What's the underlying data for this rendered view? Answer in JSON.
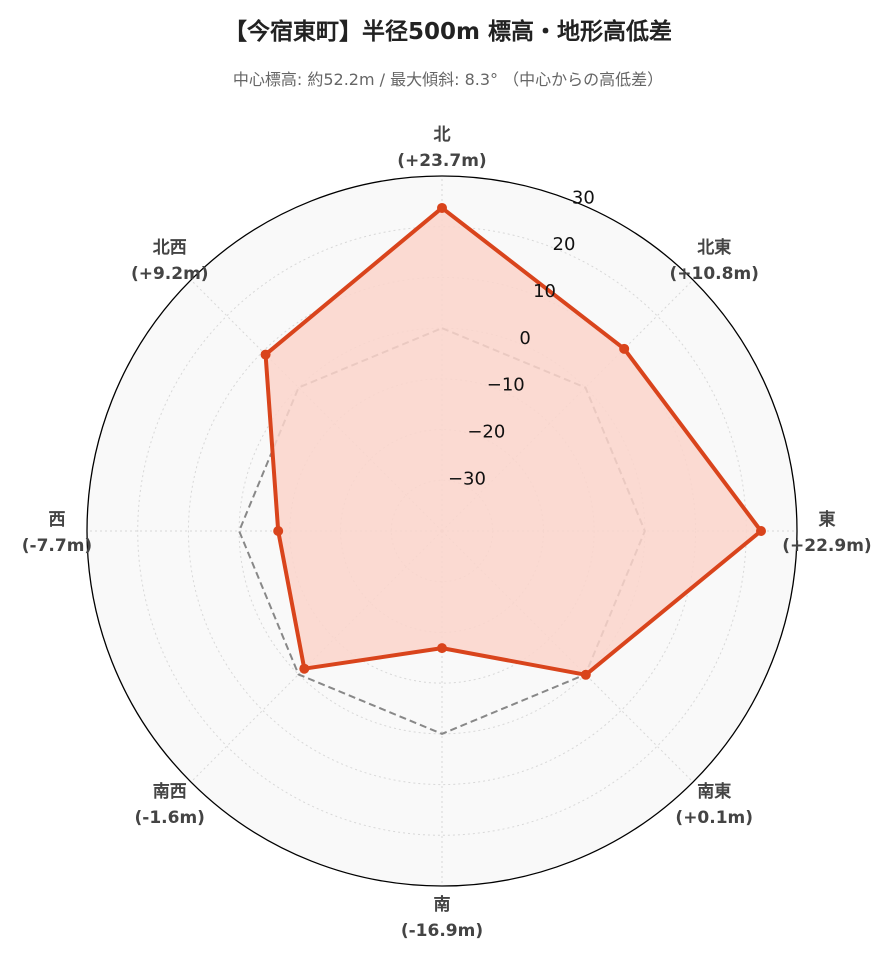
{
  "title": "【今宿東町】半径500m 標高・地形高低差",
  "subtitle": "中心標高: 約52.2m / 最大傾斜: 8.3° （中心からの高低差）",
  "chart_data": {
    "type": "radar",
    "categories": [
      "北",
      "北東",
      "東",
      "南東",
      "南",
      "南西",
      "西",
      "北西"
    ],
    "category_value_labels": [
      "(+23.7m)",
      "(+10.8m)",
      "(+22.9m)",
      "(+0.1m)",
      "(-16.9m)",
      "(-1.6m)",
      "(-7.7m)",
      "(+9.2m)"
    ],
    "series": [
      {
        "values": [
          23.7,
          10.8,
          22.9,
          0.1,
          -16.9,
          -1.6,
          -7.7,
          9.2
        ],
        "color": "#d9441c",
        "fill": "#fbd5cb",
        "style": "solid-with-markers"
      }
    ],
    "reference_line": {
      "value": 0,
      "color": "#888888",
      "style": "dashed"
    },
    "r_range": [
      -40,
      30
    ],
    "r_ticks": [
      -30,
      -20,
      -10,
      0,
      10,
      20,
      30
    ],
    "r_tick_labels": [
      "−30",
      "−20",
      "−10",
      "0",
      "10",
      "20",
      "30"
    ],
    "grid": true,
    "background": "#f9f9f9",
    "start_direction": "north",
    "direction": "clockwise"
  }
}
